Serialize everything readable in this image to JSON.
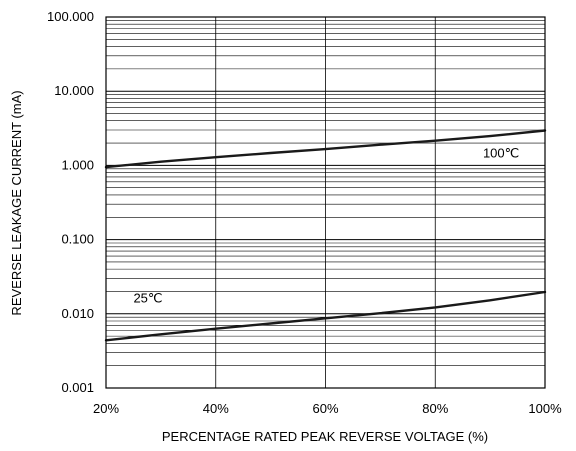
{
  "chart_data": {
    "type": "line",
    "xlabel": "PERCENTAGE RATED PEAK REVERSE VOLTAGE (%)",
    "ylabel": "REVERSE LEAKAGE CURRENT (mA)",
    "xlim": [
      20,
      100
    ],
    "ylim": [
      0.001,
      100
    ],
    "y_scale": "log",
    "grid": true,
    "x_ticks": [
      {
        "value": 20,
        "label": "20%"
      },
      {
        "value": 40,
        "label": "40%"
      },
      {
        "value": 60,
        "label": "60%"
      },
      {
        "value": 80,
        "label": "80%"
      },
      {
        "value": 100,
        "label": "100%"
      }
    ],
    "y_ticks": [
      {
        "value": 0.001,
        "label": "0.001"
      },
      {
        "value": 0.01,
        "label": "0.010"
      },
      {
        "value": 0.1,
        "label": "0.100"
      },
      {
        "value": 1,
        "label": "1.000"
      },
      {
        "value": 10,
        "label": "10.000"
      },
      {
        "value": 100,
        "label": "100.000"
      }
    ],
    "series": [
      {
        "name": "100℃",
        "x": [
          20,
          30,
          40,
          50,
          60,
          70,
          80,
          90,
          100
        ],
        "y": [
          0.95,
          1.12,
          1.29,
          1.47,
          1.66,
          1.9,
          2.15,
          2.48,
          2.95
        ]
      },
      {
        "name": "25℃",
        "x": [
          20,
          30,
          40,
          50,
          60,
          70,
          80,
          90,
          100
        ],
        "y": [
          0.0044,
          0.0053,
          0.0063,
          0.0074,
          0.0087,
          0.0102,
          0.0122,
          0.0152,
          0.0197
        ]
      }
    ],
    "line_color": "#1a1a1a",
    "grid_color": "#000000"
  }
}
